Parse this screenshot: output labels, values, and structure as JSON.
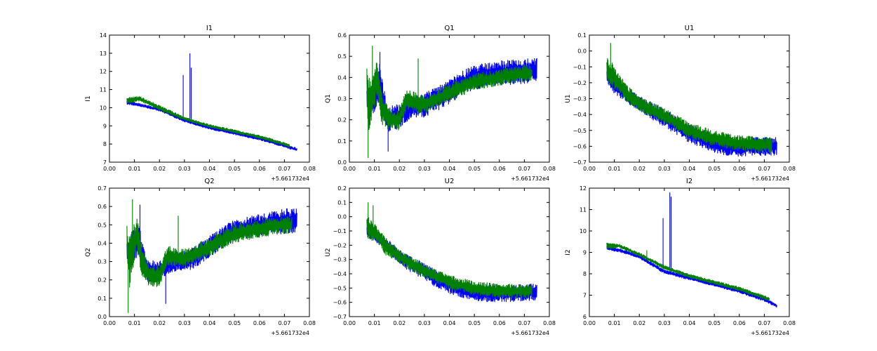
{
  "chart_data": [
    {
      "type": "line",
      "title": "I1",
      "ylabel": "I1",
      "xlabel": "",
      "x_offset_label": "+5.661732e4",
      "xlim": [
        0.0,
        0.08
      ],
      "ylim": [
        7,
        14
      ],
      "xticks": [
        "0.00",
        "0.01",
        "0.02",
        "0.03",
        "0.04",
        "0.05",
        "0.06",
        "0.07",
        "0.08"
      ],
      "yticks": [
        "7",
        "8",
        "9",
        "10",
        "11",
        "12",
        "13",
        "14"
      ],
      "colors": {
        "blue": "#0000ff",
        "green": "#008000"
      },
      "series": [
        {
          "name": "blue",
          "color": "#0000ff",
          "x": [
            0.007,
            0.012,
            0.02,
            0.03,
            0.04,
            0.05,
            0.06,
            0.07,
            0.075
          ],
          "center": [
            10.3,
            10.15,
            9.9,
            9.3,
            8.9,
            8.6,
            8.3,
            7.9,
            7.7
          ],
          "amp": [
            0.15,
            0.1,
            0.1,
            0.1,
            0.1,
            0.1,
            0.1,
            0.1,
            0.1
          ],
          "spikes": [
            {
              "x": 0.0295,
              "y": 11.8
            },
            {
              "x": 0.0322,
              "y": 13.0
            },
            {
              "x": 0.0327,
              "y": 12.2
            }
          ]
        },
        {
          "name": "green",
          "color": "#008000",
          "x": [
            0.007,
            0.012,
            0.02,
            0.03,
            0.04,
            0.05,
            0.06,
            0.07,
            0.072
          ],
          "center": [
            10.4,
            10.5,
            10.0,
            9.4,
            9.0,
            8.7,
            8.4,
            8.0,
            7.9
          ],
          "amp": [
            0.2,
            0.15,
            0.15,
            0.1,
            0.1,
            0.1,
            0.1,
            0.1,
            0.1
          ],
          "spikes": []
        }
      ]
    },
    {
      "type": "line",
      "title": "Q1",
      "ylabel": "Q1",
      "xlabel": "",
      "x_offset_label": "+5.661732e4",
      "xlim": [
        0.0,
        0.08
      ],
      "ylim": [
        0.0,
        0.6
      ],
      "xticks": [
        "0.00",
        "0.01",
        "0.02",
        "0.03",
        "0.04",
        "0.05",
        "0.06",
        "0.07",
        "0.08"
      ],
      "yticks": [
        "0.0",
        "0.1",
        "0.2",
        "0.3",
        "0.4",
        "0.5",
        "0.6"
      ],
      "colors": {
        "blue": "#0000ff",
        "green": "#008000"
      },
      "series": [
        {
          "name": "blue",
          "color": "#0000ff",
          "x": [
            0.007,
            0.01,
            0.012,
            0.015,
            0.02,
            0.025,
            0.03,
            0.035,
            0.04,
            0.045,
            0.05,
            0.06,
            0.07,
            0.075
          ],
          "center": [
            0.3,
            0.3,
            0.4,
            0.2,
            0.22,
            0.26,
            0.27,
            0.3,
            0.33,
            0.37,
            0.4,
            0.42,
            0.43,
            0.44
          ],
          "amp": [
            0.05,
            0.08,
            0.1,
            0.06,
            0.06,
            0.05,
            0.06,
            0.06,
            0.06,
            0.06,
            0.06,
            0.06,
            0.06,
            0.06
          ],
          "spikes": [
            {
              "x": 0.0122,
              "y": 0.52
            },
            {
              "x": 0.0155,
              "y": 0.05
            }
          ]
        },
        {
          "name": "green",
          "color": "#008000",
          "x": [
            0.007,
            0.008,
            0.009,
            0.011,
            0.013,
            0.016,
            0.02,
            0.023,
            0.027,
            0.03,
            0.035,
            0.04,
            0.05,
            0.06,
            0.07,
            0.073
          ],
          "center": [
            0.35,
            0.25,
            0.3,
            0.4,
            0.25,
            0.2,
            0.2,
            0.3,
            0.28,
            0.27,
            0.3,
            0.33,
            0.38,
            0.4,
            0.42,
            0.42
          ],
          "amp": [
            0.1,
            0.15,
            0.1,
            0.1,
            0.08,
            0.05,
            0.05,
            0.05,
            0.05,
            0.04,
            0.04,
            0.04,
            0.04,
            0.04,
            0.04,
            0.04
          ],
          "spikes": [
            {
              "x": 0.0075,
              "y": 0.02
            },
            {
              "x": 0.0092,
              "y": 0.55
            },
            {
              "x": 0.0275,
              "y": 0.49
            }
          ]
        }
      ]
    },
    {
      "type": "line",
      "title": "U1",
      "ylabel": "U1",
      "xlabel": "",
      "x_offset_label": "+5.661732e4",
      "xlim": [
        0.0,
        0.08
      ],
      "ylim": [
        -0.7,
        0.1
      ],
      "xticks": [
        "0.00",
        "0.01",
        "0.02",
        "0.03",
        "0.04",
        "0.05",
        "0.06",
        "0.07",
        "0.08"
      ],
      "yticks": [
        "−0.7",
        "−0.6",
        "−0.5",
        "−0.4",
        "−0.3",
        "−0.2",
        "−0.1",
        "0.0",
        "0.1"
      ],
      "colors": {
        "blue": "#0000ff",
        "green": "#008000"
      },
      "series": [
        {
          "name": "blue",
          "color": "#0000ff",
          "x": [
            0.007,
            0.01,
            0.015,
            0.02,
            0.025,
            0.03,
            0.035,
            0.04,
            0.045,
            0.05,
            0.055,
            0.06,
            0.065,
            0.07,
            0.075
          ],
          "center": [
            -0.15,
            -0.22,
            -0.28,
            -0.33,
            -0.38,
            -0.42,
            -0.47,
            -0.52,
            -0.55,
            -0.58,
            -0.6,
            -0.61,
            -0.6,
            -0.6,
            -0.6
          ],
          "amp": [
            0.05,
            0.05,
            0.05,
            0.05,
            0.06,
            0.06,
            0.06,
            0.06,
            0.06,
            0.06,
            0.06,
            0.06,
            0.06,
            0.06,
            0.06
          ],
          "spikes": []
        },
        {
          "name": "green",
          "color": "#008000",
          "x": [
            0.007,
            0.009,
            0.012,
            0.015,
            0.02,
            0.025,
            0.03,
            0.035,
            0.04,
            0.05,
            0.06,
            0.07,
            0.073
          ],
          "center": [
            -0.12,
            -0.15,
            -0.2,
            -0.27,
            -0.33,
            -0.37,
            -0.41,
            -0.45,
            -0.5,
            -0.55,
            -0.58,
            -0.59,
            -0.59
          ],
          "amp": [
            0.08,
            0.08,
            0.06,
            0.06,
            0.05,
            0.05,
            0.05,
            0.05,
            0.05,
            0.05,
            0.05,
            0.05,
            0.05
          ],
          "spikes": [
            {
              "x": 0.0085,
              "y": 0.05
            }
          ]
        }
      ]
    },
    {
      "type": "line",
      "title": "Q2",
      "ylabel": "Q2",
      "xlabel": "",
      "x_offset_label": "+5.661732e4",
      "xlim": [
        0.0,
        0.08
      ],
      "ylim": [
        0.0,
        0.7
      ],
      "xticks": [
        "0.00",
        "0.01",
        "0.02",
        "0.03",
        "0.04",
        "0.05",
        "0.06",
        "0.07",
        "0.08"
      ],
      "yticks": [
        "0.0",
        "0.1",
        "0.2",
        "0.3",
        "0.4",
        "0.5",
        "0.6",
        "0.7"
      ],
      "colors": {
        "blue": "#0000ff",
        "green": "#008000"
      },
      "series": [
        {
          "name": "blue",
          "color": "#0000ff",
          "x": [
            0.007,
            0.01,
            0.012,
            0.015,
            0.02,
            0.025,
            0.03,
            0.035,
            0.04,
            0.045,
            0.05,
            0.06,
            0.07,
            0.075
          ],
          "center": [
            0.35,
            0.4,
            0.4,
            0.25,
            0.25,
            0.3,
            0.3,
            0.33,
            0.38,
            0.43,
            0.47,
            0.5,
            0.52,
            0.52
          ],
          "amp": [
            0.06,
            0.1,
            0.1,
            0.06,
            0.06,
            0.06,
            0.06,
            0.06,
            0.06,
            0.06,
            0.06,
            0.06,
            0.07,
            0.07
          ],
          "spikes": [
            {
              "x": 0.0122,
              "y": 0.61
            },
            {
              "x": 0.0225,
              "y": 0.07
            }
          ]
        },
        {
          "name": "green",
          "color": "#008000",
          "x": [
            0.007,
            0.008,
            0.009,
            0.011,
            0.013,
            0.016,
            0.02,
            0.023,
            0.027,
            0.03,
            0.035,
            0.04,
            0.05,
            0.06,
            0.07,
            0.073
          ],
          "center": [
            0.4,
            0.3,
            0.35,
            0.45,
            0.3,
            0.22,
            0.22,
            0.33,
            0.32,
            0.32,
            0.35,
            0.38,
            0.45,
            0.48,
            0.5,
            0.5
          ],
          "amp": [
            0.1,
            0.15,
            0.12,
            0.1,
            0.08,
            0.06,
            0.06,
            0.06,
            0.05,
            0.05,
            0.05,
            0.05,
            0.05,
            0.05,
            0.05,
            0.05
          ],
          "spikes": [
            {
              "x": 0.0075,
              "y": 0.02
            },
            {
              "x": 0.0092,
              "y": 0.64
            },
            {
              "x": 0.0275,
              "y": 0.55
            }
          ]
        }
      ]
    },
    {
      "type": "line",
      "title": "U2",
      "ylabel": "U2",
      "xlabel": "",
      "x_offset_label": "+5.661732e4",
      "xlim": [
        0.0,
        0.08
      ],
      "ylim": [
        -0.7,
        0.2
      ],
      "xticks": [
        "0.00",
        "0.01",
        "0.02",
        "0.03",
        "0.04",
        "0.05",
        "0.06",
        "0.07",
        "0.08"
      ],
      "yticks": [
        "−0.7",
        "−0.6",
        "−0.5",
        "−0.4",
        "−0.3",
        "−0.2",
        "−0.1",
        "0.0",
        "0.1",
        "0.2"
      ],
      "colors": {
        "blue": "#0000ff",
        "green": "#008000"
      },
      "series": [
        {
          "name": "blue",
          "color": "#0000ff",
          "x": [
            0.007,
            0.01,
            0.015,
            0.02,
            0.025,
            0.03,
            0.035,
            0.04,
            0.045,
            0.05,
            0.055,
            0.06,
            0.065,
            0.07,
            0.075
          ],
          "center": [
            -0.1,
            -0.12,
            -0.2,
            -0.28,
            -0.34,
            -0.38,
            -0.44,
            -0.48,
            -0.51,
            -0.53,
            -0.54,
            -0.54,
            -0.54,
            -0.53,
            -0.53
          ],
          "amp": [
            0.05,
            0.05,
            0.05,
            0.05,
            0.06,
            0.06,
            0.06,
            0.06,
            0.06,
            0.06,
            0.06,
            0.06,
            0.06,
            0.06,
            0.06
          ],
          "spikes": []
        },
        {
          "name": "green",
          "color": "#008000",
          "x": [
            0.007,
            0.009,
            0.012,
            0.015,
            0.02,
            0.025,
            0.03,
            0.035,
            0.04,
            0.05,
            0.06,
            0.07,
            0.073
          ],
          "center": [
            -0.07,
            -0.1,
            -0.15,
            -0.22,
            -0.28,
            -0.33,
            -0.38,
            -0.42,
            -0.46,
            -0.5,
            -0.52,
            -0.52,
            -0.52
          ],
          "amp": [
            0.08,
            0.08,
            0.06,
            0.06,
            0.05,
            0.05,
            0.05,
            0.05,
            0.05,
            0.05,
            0.05,
            0.05,
            0.05
          ],
          "spikes": [
            {
              "x": 0.0075,
              "y": 0.1
            },
            {
              "x": 0.0095,
              "y": 0.08
            }
          ]
        }
      ]
    },
    {
      "type": "line",
      "title": "I2",
      "ylabel": "I2",
      "xlabel": "",
      "x_offset_label": "+5.661732e4",
      "xlim": [
        0.0,
        0.08
      ],
      "ylim": [
        6,
        12
      ],
      "xticks": [
        "0.00",
        "0.01",
        "0.02",
        "0.03",
        "0.04",
        "0.05",
        "0.06",
        "0.07",
        "0.08"
      ],
      "yticks": [
        "6",
        "7",
        "8",
        "9",
        "10",
        "11",
        "12"
      ],
      "colors": {
        "blue": "#0000ff",
        "green": "#008000"
      },
      "series": [
        {
          "name": "blue",
          "color": "#0000ff",
          "x": [
            0.007,
            0.012,
            0.02,
            0.03,
            0.04,
            0.05,
            0.06,
            0.07,
            0.075
          ],
          "center": [
            9.2,
            9.1,
            8.8,
            8.1,
            7.8,
            7.5,
            7.2,
            6.8,
            6.5
          ],
          "amp": [
            0.1,
            0.1,
            0.1,
            0.1,
            0.1,
            0.1,
            0.1,
            0.1,
            0.1
          ],
          "spikes": [
            {
              "x": 0.0295,
              "y": 10.6
            },
            {
              "x": 0.0322,
              "y": 11.8
            },
            {
              "x": 0.0327,
              "y": 11.6
            }
          ]
        },
        {
          "name": "green",
          "color": "#008000",
          "x": [
            0.007,
            0.012,
            0.02,
            0.03,
            0.04,
            0.05,
            0.06,
            0.07,
            0.072
          ],
          "center": [
            9.3,
            9.3,
            8.9,
            8.3,
            7.9,
            7.6,
            7.3,
            6.9,
            6.8
          ],
          "amp": [
            0.15,
            0.1,
            0.1,
            0.1,
            0.1,
            0.1,
            0.1,
            0.1,
            0.1
          ],
          "spikes": [
            {
              "x": 0.023,
              "y": 9.1
            }
          ]
        }
      ]
    }
  ]
}
